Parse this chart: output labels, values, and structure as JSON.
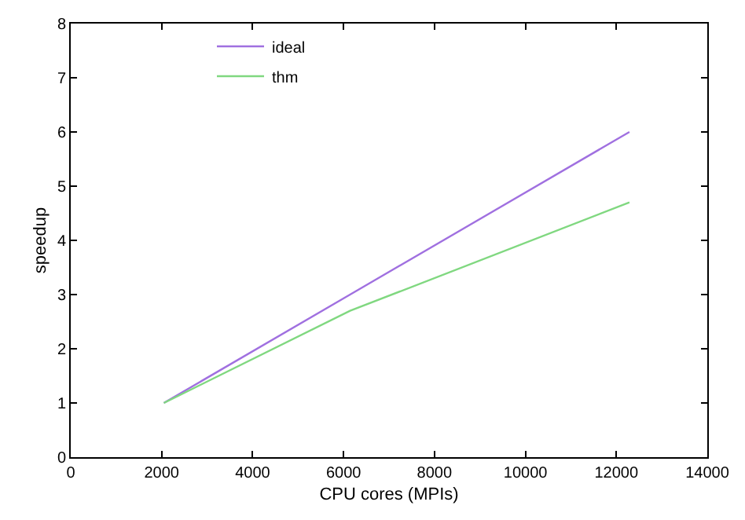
{
  "chart_data": {
    "type": "line",
    "xlabel": "CPU cores (MPIs)",
    "ylabel": "speedup",
    "xlim": [
      0,
      14000
    ],
    "xticks": [
      0,
      2000,
      4000,
      6000,
      8000,
      10000,
      12000,
      14000
    ],
    "ylim": [
      0,
      8
    ],
    "yticks": [
      0,
      1,
      2,
      3,
      4,
      5,
      6,
      7,
      8
    ],
    "legend": "top",
    "marker": "none",
    "line_style": "solid",
    "series": [
      {
        "name": "ideal",
        "color": "#a070e0",
        "x": [
          2048,
          6144,
          12288
        ],
        "values": [
          1,
          3,
          6
        ]
      },
      {
        "name": "thm",
        "color": "#80d880",
        "x": [
          2048,
          6144,
          12288
        ],
        "values": [
          1,
          2.7,
          4.7
        ]
      }
    ]
  }
}
